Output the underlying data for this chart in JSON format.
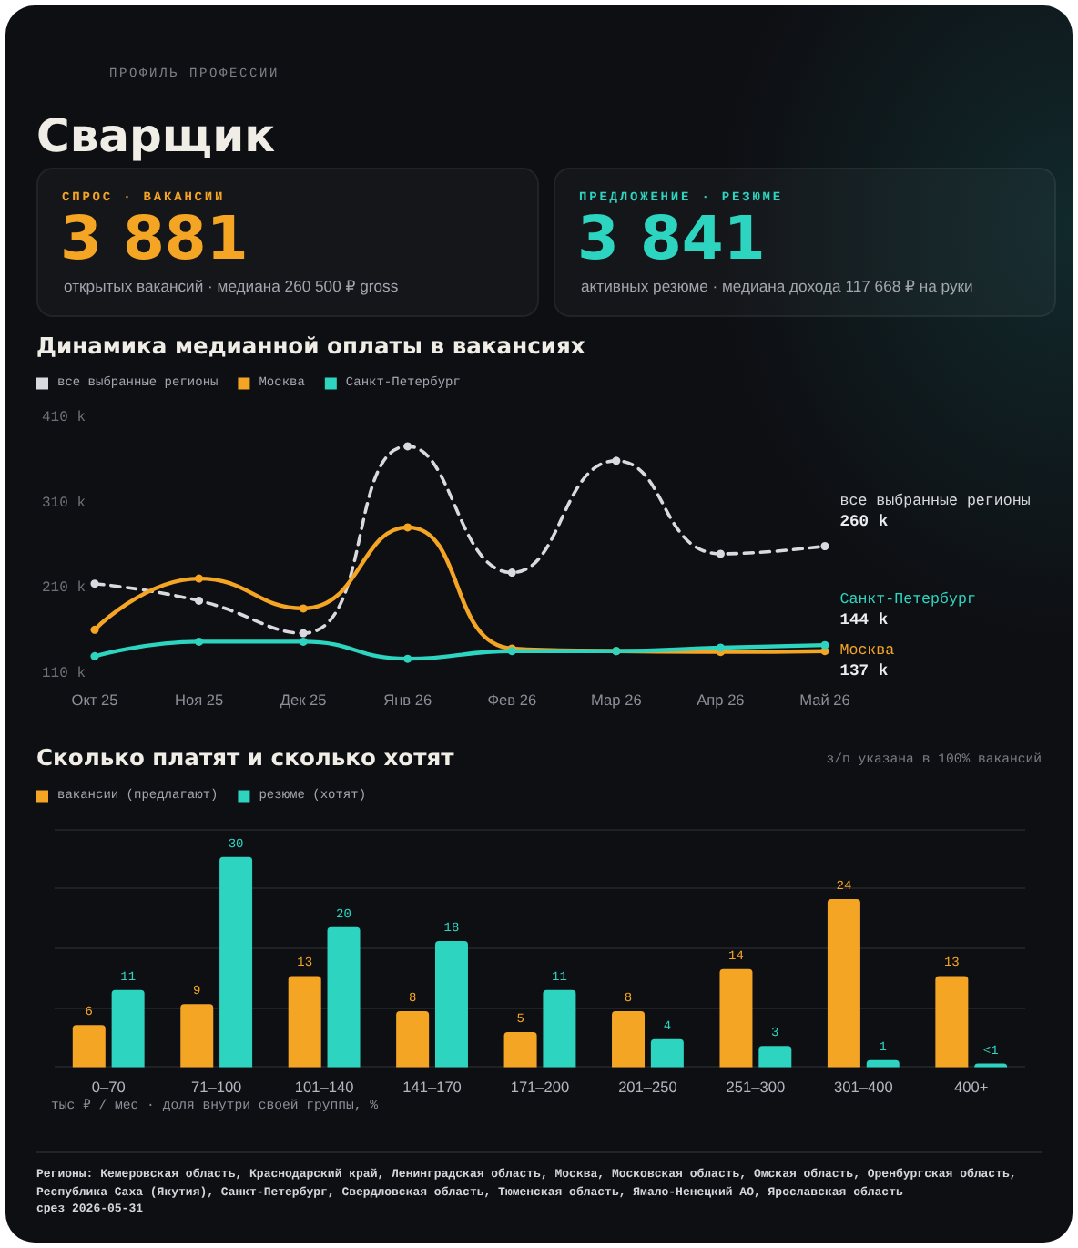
{
  "chart_data": [
    {
      "type": "other",
      "title": "Сварщик",
      "subtitle": "ПРОФИЛЬ ПРОФЕССИИ",
      "annotations": [
        "СПРОС · ВАКАНСИИ",
        "3 881",
        "открытых вакансий · медиана 260 500 ₽ gross",
        "ПРЕДЛОЖЕНИЕ · РЕЗЮМЕ",
        "3 841",
        "активных резюме · медиана дохода 117 668 ₽ на руки"
      ]
    },
    {
      "type": "line",
      "title": "Динамика медианной оплаты в вакансиях",
      "categories": [
        "Окт 25",
        "Ноя 25",
        "Дек 25",
        "Янв 26",
        "Фев 26",
        "Мар 26",
        "Апр 26",
        "Май 26"
      ],
      "series": [
        {
          "name": "все выбранные регионы",
          "color": "#d9d9df",
          "line_style": "dashed",
          "values": [
            216,
            196,
            158,
            377,
            229,
            360,
            251,
            260
          ],
          "value_labels": [
            null,
            null,
            null,
            null,
            null,
            null,
            null,
            "260 k"
          ]
        },
        {
          "name": "Москва",
          "color": "#f5a524",
          "values": [
            162,
            222,
            187,
            282,
            140,
            137,
            136,
            137
          ],
          "value_labels": [
            null,
            null,
            null,
            null,
            null,
            null,
            null,
            "137 k"
          ]
        },
        {
          "name": "Санкт-Петербург",
          "color": "#2dd4bf",
          "values": [
            131,
            148,
            148,
            128,
            137,
            137,
            141,
            144
          ],
          "value_labels": [
            null,
            null,
            null,
            null,
            null,
            null,
            null,
            "144 k"
          ]
        }
      ],
      "ylim": [
        110,
        410
      ],
      "yticks": [
        {
          "value": 110,
          "label": "110 k"
        },
        {
          "value": 210,
          "label": "210 k"
        },
        {
          "value": 310,
          "label": "310 k"
        },
        {
          "value": 410,
          "label": "410 k"
        }
      ],
      "legend": "top left",
      "marker": "circle",
      "line_style": "solid"
    },
    {
      "type": "bar",
      "title": "Сколько платят и сколько хотят",
      "categories": [
        "0–70",
        "71–100",
        "101–140",
        "141–170",
        "171–200",
        "201–250",
        "251–300",
        "301–400",
        "400+"
      ],
      "series": [
        {
          "name": "вакансии (предлагают)",
          "color": "#f5a524",
          "values": [
            6,
            9,
            13,
            8,
            5,
            8,
            14,
            24,
            13
          ],
          "value_labels": [
            "6",
            "9",
            "13",
            "8",
            "5",
            "8",
            "14",
            "24",
            "13"
          ]
        },
        {
          "name": "резюме (хотят)",
          "color": "#2dd4bf",
          "values": [
            11,
            30,
            20,
            18,
            11,
            4,
            3,
            1,
            0.5
          ],
          "value_labels": [
            "11",
            "30",
            "20",
            "18",
            "11",
            "4",
            "3",
            "1",
            "<1"
          ]
        }
      ],
      "xlabel": "тыс ₽ / мес · доля внутри своей группы, %",
      "ylim": [
        0,
        34
      ],
      "yticks": [
        {
          "value": 0,
          "label": null
        },
        {
          "value": 8.5,
          "label": null
        },
        {
          "value": 17,
          "label": null
        },
        {
          "value": 25.5,
          "label": null
        },
        {
          "value": 34,
          "label": null
        }
      ],
      "grid": "y",
      "tick_labels": "x",
      "legend": "top left",
      "annotations": [
        "з/п указана в 100% вакансий",
        "Регионы: Кемеровская область, Краснодарский край, Ленинградская область, Москва, Московская область, Омская область, Оренбургская область, Республика Саха (Якутия), Санкт-Петербург, Свердловская область, Тюменская область, Ямало-Ненецкий АО, Ярославская область",
        "срез 2026-05-31"
      ]
    }
  ]
}
